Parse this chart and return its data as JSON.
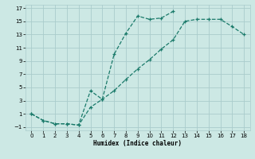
{
  "xlabel": "Humidex (Indice chaleur)",
  "bg_color": "#cce8e4",
  "grid_color": "#aacccc",
  "line_color": "#1a7a6a",
  "curve1_x": [
    0,
    1,
    2,
    3,
    4,
    5,
    6,
    7,
    8,
    9,
    10,
    11,
    12
  ],
  "curve1_y": [
    1,
    0,
    -0.5,
    -0.5,
    -0.7,
    4.5,
    3.2,
    10.0,
    13.2,
    15.8,
    15.3,
    15.5,
    16.5
  ],
  "curve2_x": [
    0,
    1,
    2,
    3,
    4,
    5,
    6,
    7,
    8,
    9,
    10,
    11,
    12,
    13,
    14,
    15,
    16,
    17,
    18
  ],
  "curve2_y": [
    1,
    0,
    -0.5,
    -0.5,
    -0.7,
    2.0,
    3.2,
    4.5,
    6.2,
    7.8,
    9.2,
    10.8,
    12.2,
    15.0,
    15.3,
    15.3,
    15.3,
    14.2,
    13.0
  ],
  "xlim": [
    -0.5,
    18.5
  ],
  "ylim": [
    -1.5,
    17.5
  ],
  "xticks": [
    0,
    1,
    2,
    3,
    4,
    5,
    6,
    7,
    8,
    9,
    10,
    11,
    12,
    13,
    14,
    15,
    16,
    17,
    18
  ],
  "yticks": [
    -1,
    1,
    3,
    5,
    7,
    9,
    11,
    13,
    15,
    17
  ]
}
